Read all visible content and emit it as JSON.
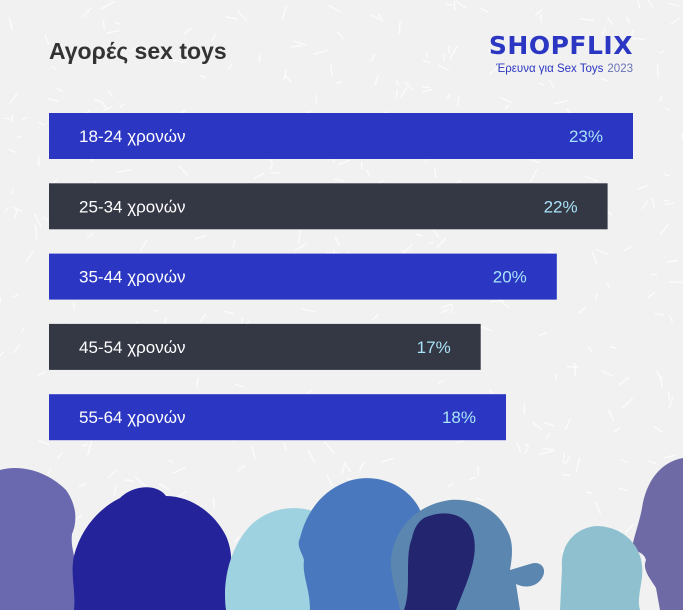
{
  "header": {
    "title": "Αγορές sex toys",
    "brand": "SHOPFLIX",
    "subtitle": "Έρευνα για Sex Toys",
    "year": "2023"
  },
  "chart_data": {
    "type": "bar",
    "orientation": "horizontal",
    "title": "Αγορές sex toys",
    "categories": [
      "18-24 χρονών",
      "25-34 χρονών",
      "35-44 χρονών",
      "45-54 χρονών",
      "55-64 χρονών"
    ],
    "values": [
      23,
      22,
      20,
      17,
      18
    ],
    "value_labels": [
      "23%",
      "22%",
      "20%",
      "17%",
      "18%"
    ],
    "unit": "%",
    "xlim": [
      0,
      23
    ],
    "grid": false,
    "legend": "none",
    "colors": {
      "bar_blue": "#2b36c2",
      "bar_dark": "#343744",
      "category_text": "#ffffff",
      "value_text": "#a8e3f7"
    }
  }
}
